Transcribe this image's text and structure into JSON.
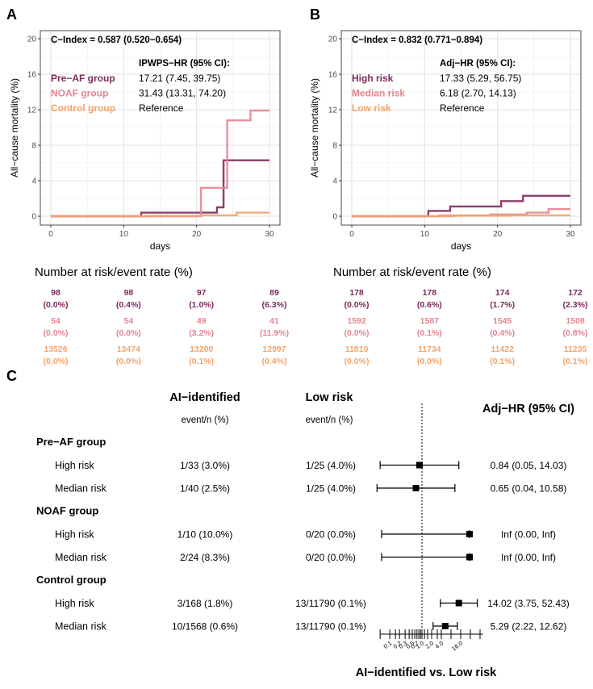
{
  "colors": {
    "pre_af": "#7d2a5a",
    "noaf": "#e5858f",
    "control": "#f2a46b",
    "black": "#000000",
    "grid": "#e6e6e6",
    "panel_bg": "#ffffff"
  },
  "chart_data": [
    {
      "type": "line",
      "step": true,
      "panel_label": "A",
      "title": "C−Index = 0.587 (0.520−0.654)",
      "xlabel": "days",
      "ylabel": "All−cause mortality (%)",
      "xlim": [
        0,
        30
      ],
      "ylim": [
        0,
        20
      ],
      "xticks": [
        "0",
        "10",
        "20",
        "30"
      ],
      "yticks": [
        "0",
        "4",
        "8",
        "12",
        "16",
        "20"
      ],
      "hr_header": "IPWPS−HR (95% CI):",
      "legend": [
        {
          "label": "Pre−AF group",
          "hr": "17.21 (7.45, 39.75)",
          "color": "#7d2a5a"
        },
        {
          "label": "NOAF group",
          "hr": "31.43 (13.31, 74.20)",
          "color": "#e5858f"
        },
        {
          "label": "Control group",
          "hr": "Reference",
          "color": "#f2a46b"
        }
      ],
      "series": [
        {
          "name": "Pre−AF group",
          "color": "#7d2a5a",
          "x": [
            0,
            12.4,
            22.8,
            23.7,
            30
          ],
          "y": [
            0,
            0.4,
            1.0,
            6.3,
            6.3
          ]
        },
        {
          "name": "NOAF group",
          "color": "#e5858f",
          "x": [
            0,
            20.6,
            24.2,
            27.4,
            30
          ],
          "y": [
            0,
            3.2,
            10.8,
            11.9,
            11.9
          ]
        },
        {
          "name": "Control group",
          "color": "#f2a46b",
          "x": [
            0,
            13,
            20.5,
            25.5,
            30
          ],
          "y": [
            0,
            0.05,
            0.1,
            0.4,
            0.4
          ]
        }
      ],
      "risk_table_title": "Number at risk/event rate (%)",
      "risk_table": [
        {
          "color": "#7d2a5a",
          "n": [
            "98",
            "98",
            "97",
            "89"
          ],
          "rate": [
            "(0.0%)",
            "(0.4%)",
            "(1.0%)",
            "(6.3%)"
          ]
        },
        {
          "color": "#e5858f",
          "n": [
            "54",
            "54",
            "49",
            "41"
          ],
          "rate": [
            "(0.0%)",
            "(0.0%)",
            "(3.2%)",
            "(11.9%)"
          ]
        },
        {
          "color": "#f2a46b",
          "n": [
            "13526",
            "13474",
            "13200",
            "12997"
          ],
          "rate": [
            "(0.0%)",
            "(0.0%)",
            "(0.1%)",
            "(0.4%)"
          ]
        }
      ]
    },
    {
      "type": "line",
      "step": true,
      "panel_label": "B",
      "title": "C−Index = 0.832 (0.771−0.894)",
      "xlabel": "days",
      "ylabel": "All−cause mortality (%)",
      "xlim": [
        0,
        30
      ],
      "ylim": [
        0,
        20
      ],
      "xticks": [
        "0",
        "10",
        "20",
        "30"
      ],
      "yticks": [
        "0",
        "4",
        "8",
        "12",
        "16",
        "20"
      ],
      "hr_header": "Adj−HR (95% CI):",
      "legend": [
        {
          "label": "High risk",
          "hr": "17.33 (5.29, 56.75)",
          "color": "#7d2a5a"
        },
        {
          "label": "Median risk",
          "hr": "6.18 (2.70, 14.13)",
          "color": "#e5858f"
        },
        {
          "label": "Low risk",
          "hr": "Reference",
          "color": "#f2a46b"
        }
      ],
      "series": [
        {
          "name": "High risk",
          "color": "#7d2a5a",
          "x": [
            0,
            10.5,
            13.5,
            20.5,
            23.5,
            30
          ],
          "y": [
            0,
            0.6,
            1.1,
            1.7,
            2.3,
            2.3
          ]
        },
        {
          "name": "Median risk",
          "color": "#e5858f",
          "x": [
            0,
            12,
            19,
            24,
            27,
            30
          ],
          "y": [
            0,
            0.1,
            0.2,
            0.4,
            0.8,
            0.8
          ]
        },
        {
          "name": "Low risk",
          "color": "#f2a46b",
          "x": [
            0,
            14,
            22,
            30
          ],
          "y": [
            0,
            0.05,
            0.1,
            0.1
          ]
        }
      ],
      "risk_table_title": "Number at risk/event rate (%)",
      "risk_table": [
        {
          "color": "#7d2a5a",
          "n": [
            "178",
            "178",
            "174",
            "172"
          ],
          "rate": [
            "(0.0%)",
            "(0.6%)",
            "(1.7%)",
            "(2.3%)"
          ]
        },
        {
          "color": "#e5858f",
          "n": [
            "1592",
            "1587",
            "1545",
            "1508"
          ],
          "rate": [
            "(0.0%)",
            "(0.1%)",
            "(0.4%)",
            "(0.8%)"
          ]
        },
        {
          "color": "#f2a46b",
          "n": [
            "11810",
            "11734",
            "11422",
            "11235"
          ],
          "rate": [
            "(0.0%)",
            "(0.0%)",
            "(0.1%)",
            "(0.1%)"
          ]
        }
      ]
    },
    {
      "type": "forest",
      "panel_label": "C",
      "col_headers": {
        "ai": "AI−identified",
        "ai_sub": "event/n (%)",
        "low": "Low risk",
        "low_sub": "event/n (%)",
        "hr": "Adj−HR (95% CI)"
      },
      "xlabel": "AI−identified vs. Low risk",
      "xscale": "log2",
      "xlim": [
        0.05,
        80
      ],
      "reference_line": 1,
      "xticks": [
        "0.1",
        "0.2",
        "0.3",
        "0.5",
        "0.7",
        "1.0",
        "2.0",
        "4.0",
        "16.0"
      ],
      "xtick_values": [
        0.1,
        0.2,
        0.3,
        0.5,
        0.7,
        1.0,
        2.0,
        4.0,
        16.0
      ],
      "minor_ticks": [
        0.05,
        0.15,
        0.4,
        0.6,
        0.8,
        0.9,
        1.2,
        1.5,
        3.0,
        8.0,
        32.0,
        64.0
      ],
      "groups": [
        {
          "name": "Pre−AF group",
          "rows": [
            {
              "label": "High risk",
              "ai": "1/33 (3.0%)",
              "low": "1/25 (4.0%)",
              "hr_text": "0.84 (0.05, 14.03)",
              "est": 0.84,
              "lo": 0.05,
              "hi": 14.03
            },
            {
              "label": "Median risk",
              "ai": "1/40 (2.5%)",
              "low": "1/25 (4.0%)",
              "hr_text": "0.65 (0.04, 10.58)",
              "est": 0.65,
              "lo": 0.04,
              "hi": 10.58
            }
          ]
        },
        {
          "name": "NOAF group",
          "rows": [
            {
              "label": "High risk",
              "ai": "1/10 (10.0%)",
              "low": "0/20 (0.0%)",
              "hr_text": "Inf (0.00, Inf)",
              "est": "Inf",
              "lo": 0,
              "hi": "Inf"
            },
            {
              "label": "Median risk",
              "ai": "2/24 (8.3%)",
              "low": "0/20 (0.0%)",
              "hr_text": "Inf (0.00, Inf)",
              "est": "Inf",
              "lo": 0,
              "hi": "Inf"
            }
          ]
        },
        {
          "name": "Control group",
          "rows": [
            {
              "label": "High risk",
              "ai": "3/168 (1.8%)",
              "low": "13/11790 (0.1%)",
              "hr_text": "14.02 (3.75, 52.43)",
              "est": 14.02,
              "lo": 3.75,
              "hi": 52.43
            },
            {
              "label": "Median risk",
              "ai": "10/1568 (0.6%)",
              "low": "13/11790 (0.1%)",
              "hr_text": "5.29 (2.22, 12.62)",
              "est": 5.29,
              "lo": 2.22,
              "hi": 12.62
            }
          ]
        }
      ]
    }
  ]
}
